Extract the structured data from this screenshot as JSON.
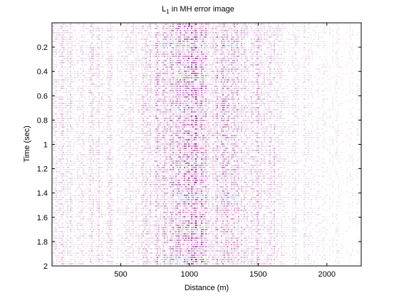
{
  "chart_data": {
    "type": "heatmap",
    "title": "L",
    "title_subscript": "1",
    "title_suffix": " in MH error image",
    "xlabel": "Distance (m)",
    "ylabel": "Time (sec)",
    "xlim": [
      0,
      2250
    ],
    "ylim": [
      2.0,
      0.0
    ],
    "y_reversed": true,
    "grid": false,
    "colormap": "white-to-purple",
    "x_ticks": [
      500,
      1000,
      1500,
      2000
    ],
    "x_tick_labels": [
      "500",
      "1000",
      "1500",
      "2000"
    ],
    "y_ticks": [
      0.2,
      0.4,
      0.6,
      0.8,
      1.0,
      1.2,
      1.4,
      1.6,
      1.8,
      2.0
    ],
    "y_tick_labels": [
      "0.2",
      "0.4",
      "0.6",
      "0.8",
      "1",
      "1.2",
      "1.4",
      "1.6",
      "1.8",
      "2"
    ],
    "colors": {
      "mark": "#8b1a8b",
      "axis": "#000000",
      "background": "#ffffff"
    },
    "column_intensity": {
      "x": [
        0,
        100,
        200,
        300,
        400,
        500,
        600,
        700,
        750,
        800,
        850,
        900,
        950,
        1000,
        1050,
        1100,
        1150,
        1200,
        1250,
        1300,
        1350,
        1400,
        1450,
        1500,
        1550,
        1600,
        1650,
        1700,
        1800,
        1900,
        2000,
        2100,
        2250
      ],
      "value": [
        0.25,
        0.3,
        0.25,
        0.3,
        0.25,
        0.2,
        0.25,
        0.35,
        0.6,
        0.45,
        0.55,
        0.5,
        0.7,
        0.85,
        0.9,
        0.75,
        0.5,
        0.55,
        0.65,
        0.5,
        0.4,
        0.35,
        0.4,
        0.5,
        0.35,
        0.4,
        0.3,
        0.25,
        0.2,
        0.15,
        0.15,
        0.12,
        0.1
      ]
    }
  }
}
